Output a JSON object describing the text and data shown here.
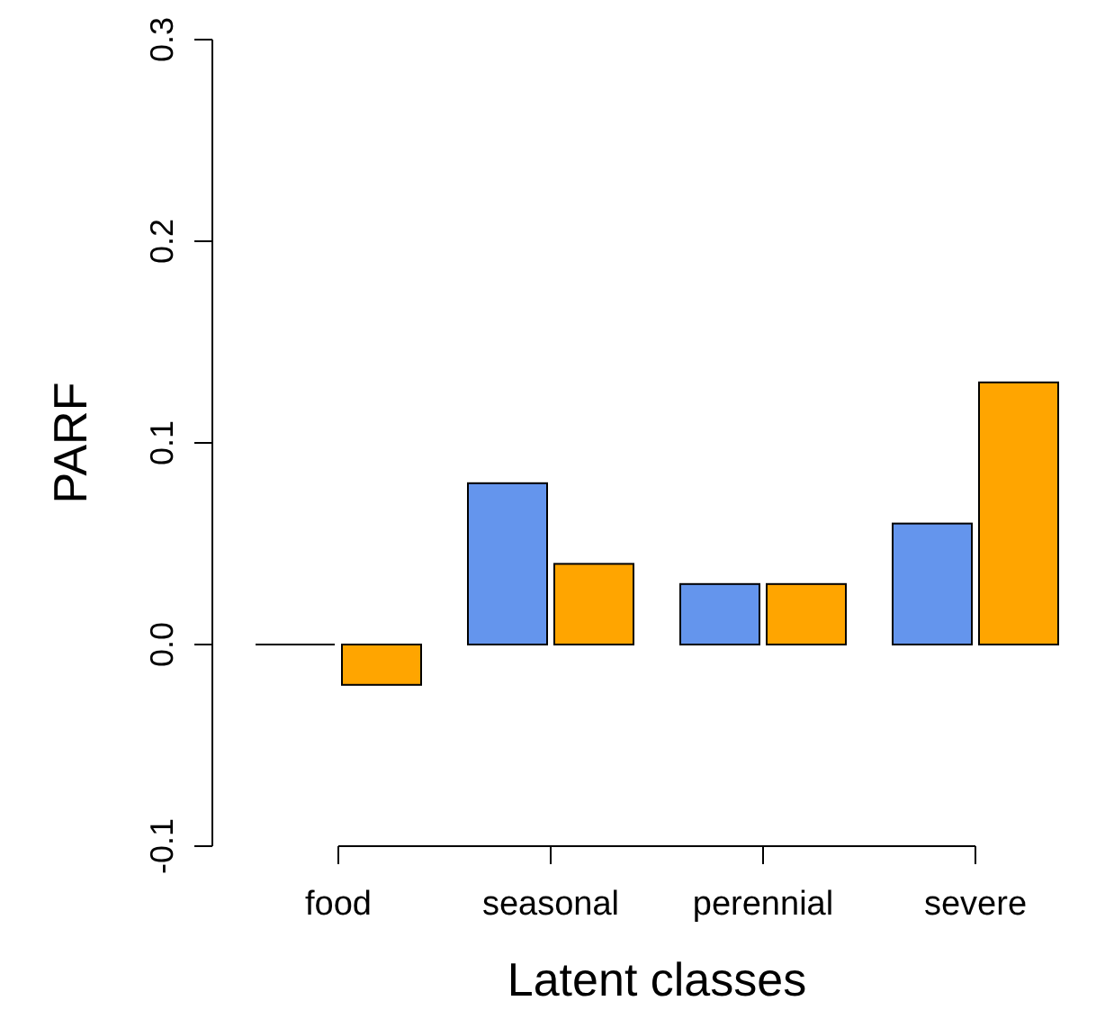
{
  "chart_data": {
    "type": "bar",
    "xlabel": "Latent classes",
    "ylabel": "PARF",
    "categories": [
      "food",
      "seasonal",
      "perennial",
      "severe"
    ],
    "series": [
      {
        "color": "#6495ed",
        "values": [
          0,
          0.08,
          0.03,
          0.06
        ]
      },
      {
        "color": "#ffa500",
        "values": [
          -0.02,
          0.04,
          0.03,
          0.13
        ]
      }
    ],
    "ylim": [
      -0.1,
      0.3
    ],
    "yticks": [
      {
        "value": -0.1,
        "label": "-0.1"
      },
      {
        "value": 0,
        "label": "0.0"
      },
      {
        "value": 0.1,
        "label": "0.1"
      },
      {
        "value": 0.2,
        "label": "0.2"
      },
      {
        "value": 0.3,
        "label": "0.3"
      }
    ]
  }
}
